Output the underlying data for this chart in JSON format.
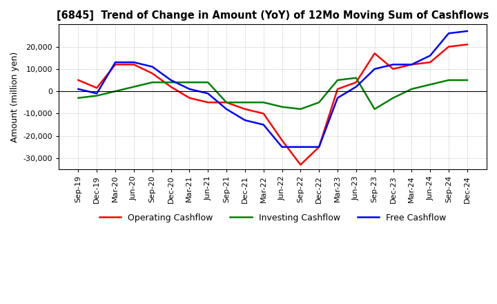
{
  "title": "[6845]  Trend of Change in Amount (YoY) of 12Mo Moving Sum of Cashflows",
  "ylabel": "Amount (million yen)",
  "background_color": "#ffffff",
  "grid_color": "#aaaaaa",
  "ylim": [
    -35000,
    30000
  ],
  "yticks": [
    -30000,
    -20000,
    -10000,
    0,
    10000,
    20000
  ],
  "x_labels": [
    "Sep-19",
    "Dec-19",
    "Mar-20",
    "Jun-20",
    "Sep-20",
    "Dec-20",
    "Mar-21",
    "Jun-21",
    "Sep-21",
    "Dec-21",
    "Mar-22",
    "Jun-22",
    "Sep-22",
    "Dec-22",
    "Mar-23",
    "Jun-23",
    "Sep-23",
    "Dec-23",
    "Mar-24",
    "Jun-24",
    "Sep-24",
    "Dec-24"
  ],
  "operating_cashflow": [
    5000,
    1500,
    12000,
    12000,
    8000,
    2000,
    -3000,
    -5000,
    -5000,
    -8000,
    -10000,
    -22000,
    -33000,
    -25000,
    1000,
    4000,
    17000,
    10000,
    12000,
    13000,
    20000,
    21000
  ],
  "investing_cashflow": [
    -3000,
    -2000,
    0,
    2000,
    4000,
    4000,
    4000,
    4000,
    -5000,
    -5000,
    -5000,
    -7000,
    -8000,
    -5000,
    5000,
    6000,
    -8000,
    -3000,
    1000,
    3000,
    5000,
    5000
  ],
  "free_cashflow": [
    1000,
    -1000,
    13000,
    13000,
    11000,
    5000,
    1000,
    -1000,
    -8000,
    -13000,
    -15000,
    -25000,
    -25000,
    -25000,
    -3000,
    2000,
    10000,
    12000,
    12000,
    16000,
    26000,
    27000
  ],
  "op_color": "#ff0000",
  "inv_color": "#008000",
  "free_color": "#0000ff",
  "line_width": 1.8
}
